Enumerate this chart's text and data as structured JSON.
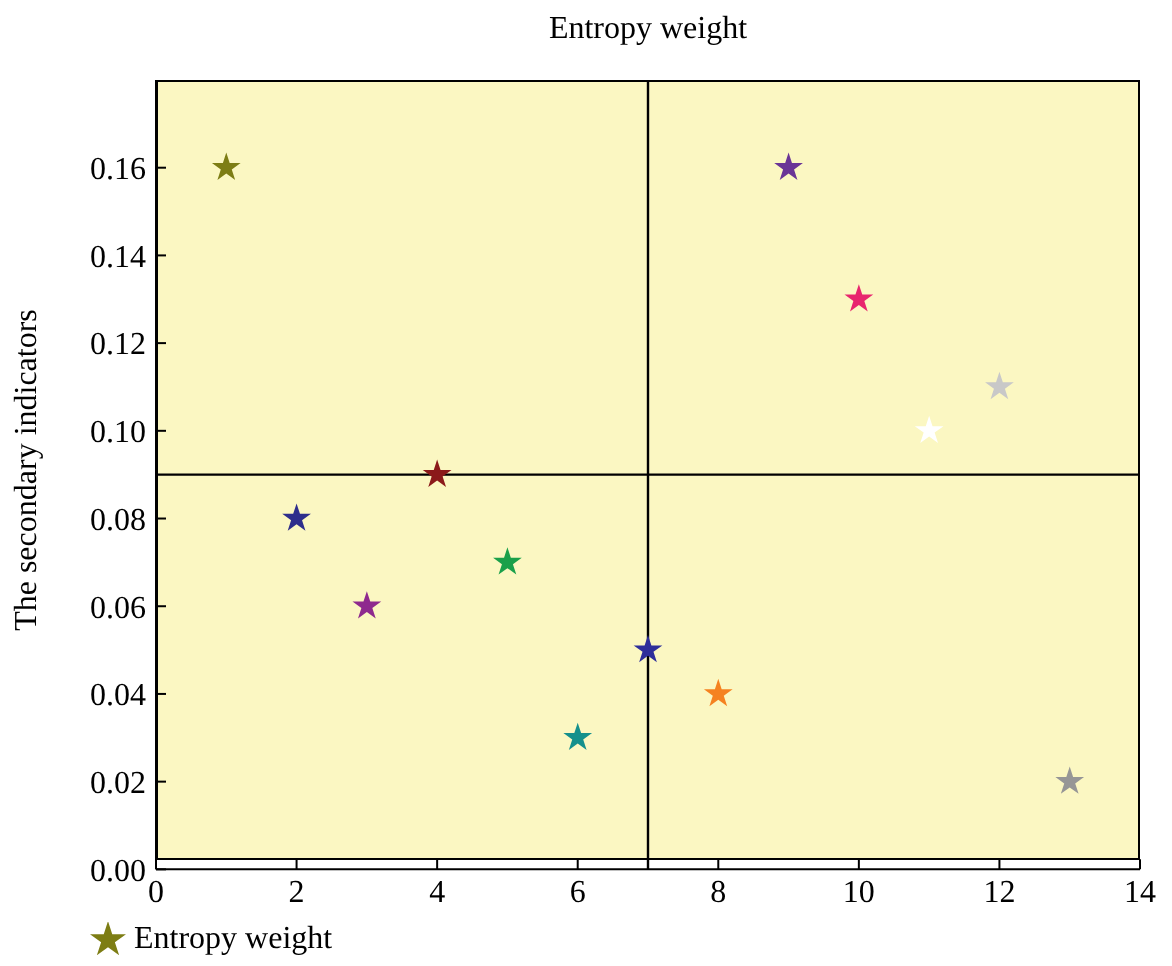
{
  "chart_data": {
    "type": "scatter",
    "xlabel": "Entropy weight",
    "ylabel": "The secondary indicators",
    "x": [
      1,
      2,
      3,
      4,
      5,
      6,
      7,
      8,
      9,
      10,
      11,
      12,
      13
    ],
    "series": [
      {
        "name": "Entropy weight",
        "color": "#7d7d14",
        "values": [
          0.16,
          0.08,
          0.06,
          0.09,
          0.07,
          0.03,
          0.05,
          0.04,
          0.16,
          0.13,
          0.1,
          0.11,
          0.02
        ],
        "colors": [
          "#7d7d14",
          "#2e2e8c",
          "#8e2a8e",
          "#8b1a1a",
          "#1aa04a",
          "#14908c",
          "#2e2e9a",
          "#f58220",
          "#6a3596",
          "#e8266e",
          "#ffffff",
          "#c8c8c8",
          "#969696"
        ]
      }
    ],
    "xlim": [
      0,
      14
    ],
    "xticks": [
      0,
      2,
      4,
      6,
      8,
      10,
      12,
      14
    ],
    "ylim": [
      0,
      0.18
    ],
    "yticks": [
      {
        "value": 0,
        "label": "0.00"
      },
      {
        "value": 0.02,
        "label": "0.02"
      },
      {
        "value": 0.04,
        "label": "0.04"
      },
      {
        "value": 0.06,
        "label": "0.06"
      },
      {
        "value": 0.08,
        "label": "0.08"
      },
      {
        "value": 0.1,
        "label": "0.10"
      },
      {
        "value": 0.12,
        "label": "0.12"
      },
      {
        "value": 0.14,
        "label": "0.14"
      },
      {
        "value": 0.16,
        "label": "0.16"
      }
    ],
    "ref_lines": [
      {
        "axis": "x",
        "value": 7,
        "color": "#000000"
      },
      {
        "axis": "y",
        "value": 0.09,
        "color": "#000000"
      }
    ],
    "marker": "star",
    "legend": "bottom left",
    "grid": false
  }
}
